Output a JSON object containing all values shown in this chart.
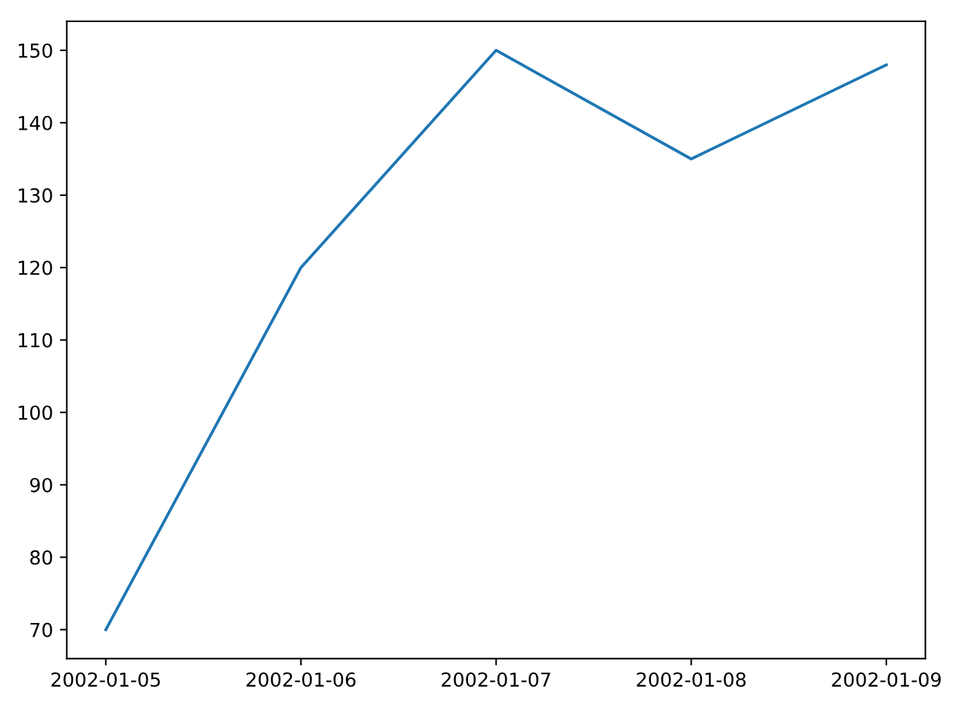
{
  "chart_data": {
    "type": "line",
    "x": [
      "2002-01-05",
      "2002-01-06",
      "2002-01-07",
      "2002-01-08",
      "2002-01-09"
    ],
    "series": [
      {
        "color": "#1f77b4",
        "values": [
          70,
          120,
          150,
          135,
          148
        ]
      }
    ],
    "xlim": [
      "2002-01-04T19:12",
      "2002-01-09T04:48"
    ],
    "xticks": [
      "2002-01-05",
      "2002-01-06",
      "2002-01-07",
      "2002-01-08",
      "2002-01-09"
    ],
    "ylim": [
      66,
      154
    ],
    "yticks": [
      70,
      80,
      90,
      100,
      110,
      120,
      130,
      140,
      150
    ],
    "grid": false,
    "marker": "none",
    "line_style": "solid"
  }
}
